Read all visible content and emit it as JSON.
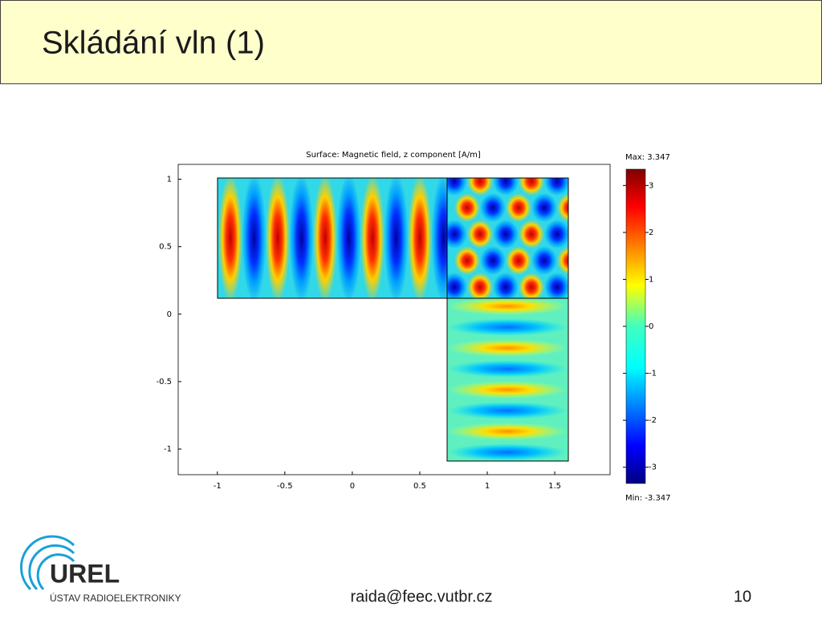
{
  "header": {
    "title": "Skládání vln (1)"
  },
  "figure": {
    "title": "Surface: Magnetic field, z component [A/m]",
    "xlim": [
      -1.29,
      1.91
    ],
    "ylim": [
      -1.19,
      1.11
    ],
    "xticks": [
      -1,
      -0.5,
      0,
      0.5,
      1,
      1.5
    ],
    "yticks": [
      1,
      0.5,
      0,
      -0.5,
      -1
    ],
    "colorbar": {
      "max_label": "Max: 3.347",
      "min_label": "Min: -3.347",
      "range": [
        -3.347,
        3.347
      ],
      "ticks": [
        3,
        2,
        1,
        0,
        -1,
        -2,
        -3
      ]
    }
  },
  "footer": {
    "logo": "UREL",
    "logo_sub": "ÚSTAV RADIOELEKTRONIKY",
    "email": "raida@feec.vutbr.cz",
    "page": "10"
  }
}
